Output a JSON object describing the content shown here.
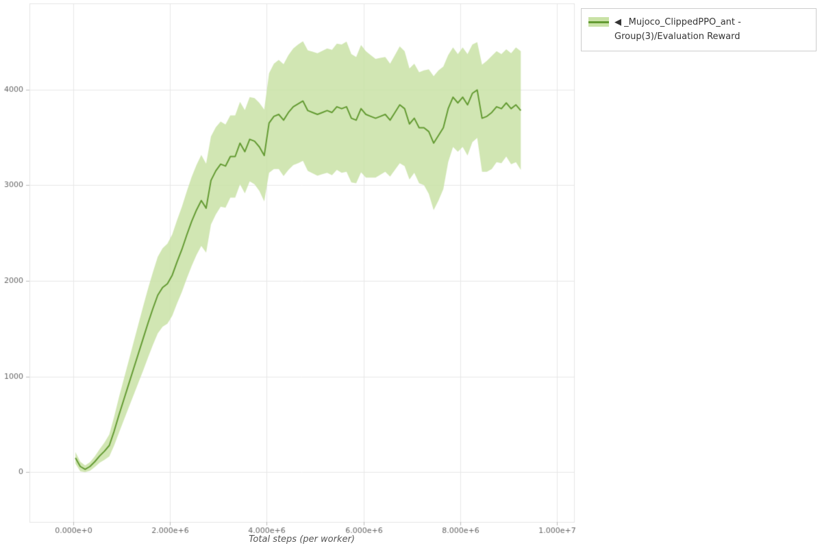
{
  "legend": {
    "label": "◀ _Mujoco_ClippedPPO_ant - Group(3)/Evaluation Reward",
    "swatch_band_color": "#c9e2a6",
    "swatch_line_color": "#649b33"
  },
  "colors": {
    "grid": "#e7e7e7",
    "outline": "#e5e5e5",
    "axis": "#bbbbbb",
    "tick_label": "#666666"
  },
  "chart_data": {
    "type": "line",
    "title": "",
    "xlabel": "Total steps (per worker)",
    "ylabel": "",
    "grid": true,
    "legend_position": "top-right-outside",
    "x_tick_labels": [
      "0.000e+0",
      "2.000e+6",
      "4.000e+6",
      "6.000e+6",
      "8.000e+6",
      "1.000e+7"
    ],
    "x_tick_values": [
      0,
      2000000,
      4000000,
      6000000,
      8000000,
      10000000
    ],
    "y_tick_values": [
      0,
      1000,
      2000,
      3000,
      4000
    ],
    "xlim": [
      -900000,
      10350000
    ],
    "ylim": [
      -520,
      4900
    ],
    "series": [
      {
        "name": "_Mujoco_ClippedPPO_ant - Group(3)/Evaluation Reward",
        "line_color": "#649b33",
        "band_color": "#c9e2a6",
        "x_millions": [
          0.05,
          0.15,
          0.25,
          0.35,
          0.45,
          0.55,
          0.65,
          0.75,
          0.85,
          0.95,
          1.05,
          1.15,
          1.25,
          1.35,
          1.45,
          1.55,
          1.65,
          1.75,
          1.85,
          1.95,
          2.05,
          2.15,
          2.25,
          2.35,
          2.45,
          2.55,
          2.65,
          2.75,
          2.85,
          2.95,
          3.05,
          3.15,
          3.25,
          3.35,
          3.45,
          3.55,
          3.65,
          3.75,
          3.85,
          3.95,
          4.05,
          4.15,
          4.25,
          4.35,
          4.45,
          4.55,
          4.65,
          4.75,
          4.85,
          4.95,
          5.05,
          5.15,
          5.25,
          5.35,
          5.45,
          5.55,
          5.65,
          5.75,
          5.85,
          5.95,
          6.05,
          6.15,
          6.25,
          6.35,
          6.45,
          6.55,
          6.65,
          6.75,
          6.85,
          6.95,
          7.05,
          7.15,
          7.25,
          7.35,
          7.45,
          7.55,
          7.65,
          7.75,
          7.85,
          7.95,
          8.05,
          8.15,
          8.25,
          8.35,
          8.45,
          8.55,
          8.65,
          8.75,
          8.85,
          8.95,
          9.05,
          9.15,
          9.25
        ],
        "mean": [
          150,
          60,
          30,
          60,
          110,
          170,
          220,
          280,
          430,
          600,
          760,
          920,
          1080,
          1240,
          1400,
          1560,
          1710,
          1850,
          1930,
          1970,
          2060,
          2200,
          2330,
          2480,
          2620,
          2740,
          2840,
          2760,
          3050,
          3150,
          3220,
          3200,
          3300,
          3300,
          3440,
          3350,
          3480,
          3460,
          3400,
          3310,
          3650,
          3720,
          3740,
          3680,
          3760,
          3820,
          3850,
          3880,
          3780,
          3760,
          3740,
          3760,
          3780,
          3760,
          3820,
          3800,
          3820,
          3700,
          3680,
          3800,
          3740,
          3720,
          3700,
          3720,
          3740,
          3680,
          3760,
          3840,
          3800,
          3640,
          3700,
          3600,
          3600,
          3560,
          3440,
          3520,
          3600,
          3800,
          3920,
          3860,
          3920,
          3840,
          3960,
          3995,
          3700,
          3720,
          3760,
          3820,
          3800,
          3860,
          3800,
          3840,
          3780
        ],
        "lower": [
          90,
          10,
          0,
          15,
          55,
          100,
          130,
          165,
          280,
          415,
          545,
          675,
          805,
          935,
          1065,
          1200,
          1330,
          1450,
          1520,
          1552,
          1635,
          1765,
          1885,
          2025,
          2155,
          2270,
          2365,
          2295,
          2590,
          2695,
          2775,
          2765,
          2870,
          2870,
          3010,
          2915,
          3040,
          3010,
          2940,
          2830,
          3130,
          3170,
          3170,
          3095,
          3160,
          3210,
          3230,
          3255,
          3150,
          3125,
          3100,
          3115,
          3130,
          3105,
          3160,
          3130,
          3140,
          3030,
          3020,
          3135,
          3080,
          3080,
          3080,
          3110,
          3140,
          3090,
          3160,
          3230,
          3200,
          3060,
          3130,
          3020,
          3000,
          2910,
          2740,
          2840,
          2960,
          3240,
          3400,
          3350,
          3400,
          3310,
          3450,
          3495,
          3140,
          3140,
          3170,
          3240,
          3230,
          3300,
          3220,
          3240,
          3160
        ],
        "upper": [
          210,
          110,
          70,
          105,
          165,
          240,
          310,
          395,
          580,
          785,
          975,
          1165,
          1355,
          1545,
          1735,
          1920,
          2090,
          2250,
          2340,
          2388,
          2485,
          2635,
          2775,
          2935,
          3085,
          3210,
          3315,
          3225,
          3510,
          3605,
          3665,
          3635,
          3730,
          3730,
          3870,
          3785,
          3920,
          3910,
          3860,
          3790,
          4170,
          4270,
          4310,
          4265,
          4360,
          4430,
          4470,
          4505,
          4410,
          4395,
          4380,
          4405,
          4430,
          4415,
          4480,
          4470,
          4500,
          4370,
          4340,
          4465,
          4400,
          4360,
          4320,
          4330,
          4340,
          4270,
          4360,
          4450,
          4400,
          4220,
          4270,
          4180,
          4200,
          4210,
          4140,
          4200,
          4240,
          4360,
          4440,
          4370,
          4440,
          4370,
          4470,
          4495,
          4260,
          4300,
          4350,
          4400,
          4370,
          4420,
          4380,
          4440,
          4400
        ]
      }
    ]
  }
}
